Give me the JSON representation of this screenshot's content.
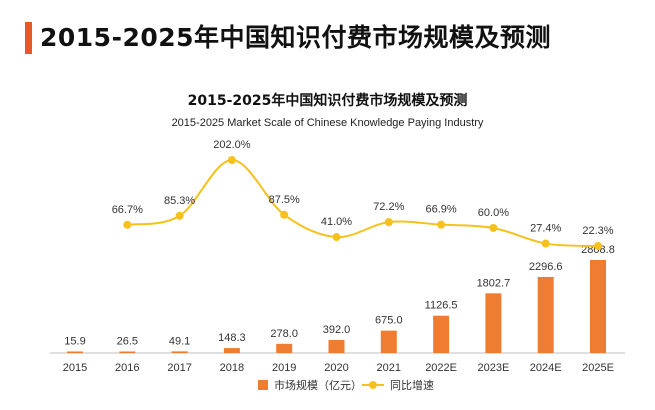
{
  "header": {
    "title": "2015-2025年中国知识付费市场规模及预测"
  },
  "chart_data": {
    "type": "bar",
    "title": "2015-2025年中国知识付费市场规模及预测",
    "subtitle": "2015-2025 Market Scale of Chinese Knowledge Paying Industry",
    "categories": [
      "2015",
      "2016",
      "2017",
      "2018",
      "2019",
      "2020",
      "2021",
      "2022E",
      "2023E",
      "2024E",
      "2025E"
    ],
    "series": [
      {
        "name": "市场规模（亿元）",
        "type": "bar",
        "values": [
          15.9,
          26.5,
          49.1,
          148.3,
          278.0,
          392.0,
          675.0,
          1126.5,
          1802.7,
          2296.6,
          2808.8
        ],
        "labels": [
          "15.9",
          "26.5",
          "49.1",
          "148.3",
          "278.0",
          "392.0",
          "675.0",
          "1126.5",
          "1802.7",
          "2296.6",
          "2808.8"
        ]
      },
      {
        "name": "同比增速",
        "type": "line",
        "values": [
          null,
          66.7,
          85.3,
          202.0,
          87.5,
          41.0,
          72.2,
          66.9,
          60.0,
          27.4,
          22.3
        ],
        "labels": [
          "",
          "66.7%",
          "85.3%",
          "202.0%",
          "87.5%",
          "41.0%",
          "72.2%",
          "66.9%",
          "60.0%",
          "27.4%",
          "22.3%"
        ]
      }
    ],
    "legend_position": "bottom",
    "grid": false,
    "colors": {
      "bar": "#ee7d31",
      "line": "#f6c11c",
      "axis": "#bfbfbf",
      "accent": "#e8562a"
    }
  }
}
